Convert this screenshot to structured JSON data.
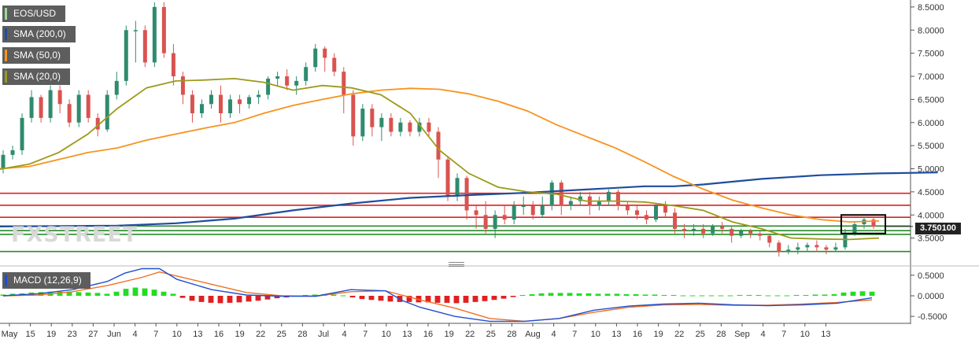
{
  "legend": {
    "pair": "EOS/USD",
    "sma200": "SMA (200,0)",
    "sma50": "SMA (50,0)",
    "sma20": "SMA (20,0)",
    "macd": "MACD (12,26,9)"
  },
  "watermark": "FXSTREET",
  "current_price": "3.750100",
  "colors": {
    "bull": "#2e8b6e",
    "bear": "#d9534f",
    "sma200": "#1f4e9c",
    "sma50": "#f7931e",
    "sma20": "#9c9a1a",
    "macd_line": "#1f4fd0",
    "signal_line": "#f07020",
    "hist_pos": "#22dd22",
    "hist_neg": "#e02020",
    "resistance": "#e02020",
    "support": "#2a8a2a"
  },
  "chart_data": [
    {
      "type": "candlestick",
      "title": "EOS/USD",
      "ylim": [
        3.0,
        8.6
      ],
      "y_ticks": [
        8.5,
        8.0,
        7.5,
        7.0,
        6.5,
        6.0,
        5.5,
        5.0,
        4.5,
        4.0,
        3.5
      ],
      "y_tick_labels": [
        "8.5000",
        "8.0000",
        "7.5000",
        "7.0000",
        "6.5000",
        "6.0000",
        "5.5000",
        "5.0000",
        "4.5000",
        "4.0000",
        "3.5000"
      ],
      "x_tick_labels": [
        "May",
        "15",
        "19",
        "23",
        "27",
        "Jun",
        "4",
        "7",
        "10",
        "13",
        "16",
        "19",
        "22",
        "25",
        "28",
        "Jul",
        "4",
        "7",
        "10",
        "13",
        "16",
        "19",
        "22",
        "25",
        "28",
        "Aug",
        "4",
        "7",
        "10",
        "13",
        "16",
        "19",
        "22",
        "25",
        "28",
        "Sep",
        "4",
        "7",
        "10",
        "13"
      ],
      "candles": [
        [
          5.0,
          5.3,
          5.4,
          4.9
        ],
        [
          5.3,
          5.4,
          5.5,
          5.2
        ],
        [
          5.4,
          6.1,
          6.2,
          5.3
        ],
        [
          6.1,
          6.55,
          6.7,
          6.0
        ],
        [
          6.55,
          6.1,
          6.6,
          6.0
        ],
        [
          6.1,
          6.7,
          6.8,
          6.0
        ],
        [
          6.7,
          6.4,
          6.8,
          6.2
        ],
        [
          6.4,
          6.0,
          6.5,
          5.9
        ],
        [
          6.0,
          6.6,
          6.7,
          5.9
        ],
        [
          6.6,
          6.1,
          6.7,
          6.0
        ],
        [
          6.1,
          5.85,
          6.2,
          5.7
        ],
        [
          5.85,
          6.6,
          6.7,
          5.8
        ],
        [
          6.6,
          6.9,
          7.1,
          6.5
        ],
        [
          6.9,
          8.0,
          8.1,
          6.8
        ],
        [
          8.0,
          8.0,
          8.2,
          7.3
        ],
        [
          8.0,
          7.3,
          8.1,
          7.2
        ],
        [
          7.3,
          8.5,
          8.6,
          7.2
        ],
        [
          8.5,
          7.5,
          8.6,
          7.4
        ],
        [
          7.5,
          7.0,
          7.7,
          6.8
        ],
        [
          7.0,
          6.6,
          7.1,
          6.4
        ],
        [
          6.6,
          6.2,
          6.7,
          6.0
        ],
        [
          6.2,
          6.4,
          6.5,
          6.1
        ],
        [
          6.4,
          6.6,
          6.7,
          6.3
        ],
        [
          6.6,
          6.2,
          6.8,
          6.0
        ],
        [
          6.2,
          6.5,
          6.6,
          6.1
        ],
        [
          6.5,
          6.4,
          6.6,
          6.2
        ],
        [
          6.4,
          6.55,
          6.6,
          6.3
        ],
        [
          6.55,
          6.6,
          6.7,
          6.4
        ],
        [
          6.6,
          6.95,
          7.0,
          6.5
        ],
        [
          6.95,
          7.0,
          7.1,
          6.8
        ],
        [
          7.0,
          6.8,
          7.15,
          6.7
        ],
        [
          6.8,
          6.9,
          7.0,
          6.6
        ],
        [
          6.9,
          7.2,
          7.3,
          6.8
        ],
        [
          7.2,
          7.6,
          7.7,
          7.1
        ],
        [
          7.6,
          7.4,
          7.65,
          7.1
        ],
        [
          7.4,
          7.1,
          7.5,
          7.0
        ],
        [
          7.1,
          6.6,
          7.2,
          6.2
        ],
        [
          6.6,
          5.7,
          6.7,
          5.5
        ],
        [
          5.7,
          6.3,
          6.4,
          5.6
        ],
        [
          6.3,
          5.9,
          6.4,
          5.7
        ],
        [
          5.9,
          6.1,
          6.2,
          5.6
        ],
        [
          6.1,
          5.8,
          6.2,
          5.7
        ],
        [
          5.8,
          6.0,
          6.1,
          5.7
        ],
        [
          6.0,
          5.8,
          6.05,
          5.7
        ],
        [
          5.8,
          6.0,
          6.1,
          5.7
        ],
        [
          6.0,
          5.8,
          6.1,
          5.7
        ],
        [
          5.8,
          5.2,
          5.9,
          4.8
        ],
        [
          5.2,
          4.4,
          5.25,
          4.3
        ],
        [
          4.4,
          4.8,
          4.9,
          4.3
        ],
        [
          4.8,
          4.1,
          4.85,
          3.9
        ],
        [
          4.1,
          4.0,
          4.2,
          3.7
        ],
        [
          4.0,
          3.7,
          4.3,
          3.6
        ],
        [
          3.7,
          4.0,
          4.1,
          3.5
        ],
        [
          4.0,
          3.9,
          4.2,
          3.8
        ],
        [
          3.9,
          4.2,
          4.3,
          3.8
        ],
        [
          4.2,
          4.2,
          4.4,
          4.0
        ],
        [
          4.2,
          4.0,
          4.3,
          3.9
        ],
        [
          4.0,
          4.2,
          4.4,
          3.95
        ],
        [
          4.2,
          4.7,
          4.75,
          4.1
        ],
        [
          4.7,
          4.2,
          4.75,
          4.0
        ],
        [
          4.2,
          4.3,
          4.4,
          4.1
        ],
        [
          4.3,
          4.4,
          4.5,
          4.2
        ],
        [
          4.4,
          4.2,
          4.5,
          4.0
        ],
        [
          4.2,
          4.3,
          4.4,
          4.1
        ],
        [
          4.3,
          4.5,
          4.55,
          4.2
        ],
        [
          4.5,
          4.2,
          4.55,
          4.1
        ],
        [
          4.2,
          4.1,
          4.3,
          4.0
        ],
        [
          4.1,
          4.0,
          4.2,
          3.9
        ],
        [
          4.0,
          3.9,
          4.1,
          3.8
        ],
        [
          3.9,
          4.2,
          4.25,
          3.85
        ],
        [
          4.2,
          4.05,
          4.3,
          3.95
        ],
        [
          4.05,
          3.7,
          4.15,
          3.6
        ],
        [
          3.7,
          3.65,
          3.8,
          3.5
        ],
        [
          3.65,
          3.7,
          3.8,
          3.55
        ],
        [
          3.7,
          3.6,
          3.8,
          3.5
        ],
        [
          3.6,
          3.75,
          3.8,
          3.55
        ],
        [
          3.75,
          3.7,
          3.85,
          3.6
        ],
        [
          3.7,
          3.55,
          3.75,
          3.4
        ],
        [
          3.55,
          3.65,
          3.7,
          3.5
        ],
        [
          3.65,
          3.6,
          3.7,
          3.5
        ],
        [
          3.6,
          3.55,
          3.65,
          3.45
        ],
        [
          3.55,
          3.4,
          3.6,
          3.3
        ],
        [
          3.4,
          3.2,
          3.45,
          3.1
        ],
        [
          3.2,
          3.25,
          3.35,
          3.15
        ],
        [
          3.25,
          3.3,
          3.4,
          3.15
        ],
        [
          3.3,
          3.35,
          3.4,
          3.2
        ],
        [
          3.35,
          3.3,
          3.45,
          3.2
        ],
        [
          3.3,
          3.25,
          3.35,
          3.15
        ],
        [
          3.25,
          3.3,
          3.4,
          3.2
        ],
        [
          3.3,
          3.6,
          3.7,
          3.25
        ],
        [
          3.6,
          3.8,
          3.85,
          3.55
        ],
        [
          3.8,
          3.9,
          3.95,
          3.7
        ],
        [
          3.9,
          3.75,
          3.95,
          3.7
        ]
      ],
      "sma200": [
        [
          0,
          3.75
        ],
        [
          10,
          3.76
        ],
        [
          20,
          3.77
        ],
        [
          30,
          3.82
        ],
        [
          40,
          3.92
        ],
        [
          50,
          4.1
        ],
        [
          60,
          4.25
        ],
        [
          70,
          4.37
        ],
        [
          80,
          4.43
        ],
        [
          90,
          4.48
        ],
        [
          100,
          4.55
        ],
        [
          110,
          4.62
        ],
        [
          115,
          4.62
        ],
        [
          120,
          4.66
        ],
        [
          130,
          4.78
        ],
        [
          140,
          4.86
        ],
        [
          150,
          4.9
        ],
        [
          160,
          4.92
        ]
      ],
      "sma50": [
        [
          0,
          5.0
        ],
        [
          5,
          5.05
        ],
        [
          10,
          5.2
        ],
        [
          15,
          5.35
        ],
        [
          20,
          5.45
        ],
        [
          25,
          5.62
        ],
        [
          30,
          5.75
        ],
        [
          35,
          5.88
        ],
        [
          40,
          6.0
        ],
        [
          45,
          6.2
        ],
        [
          50,
          6.37
        ],
        [
          55,
          6.5
        ],
        [
          60,
          6.62
        ],
        [
          65,
          6.7
        ],
        [
          70,
          6.74
        ],
        [
          75,
          6.72
        ],
        [
          80,
          6.62
        ],
        [
          85,
          6.46
        ],
        [
          90,
          6.25
        ],
        [
          95,
          5.95
        ],
        [
          100,
          5.7
        ],
        [
          105,
          5.45
        ],
        [
          110,
          5.15
        ],
        [
          115,
          4.83
        ],
        [
          120,
          4.56
        ],
        [
          125,
          4.32
        ],
        [
          130,
          4.15
        ],
        [
          135,
          4.0
        ],
        [
          140,
          3.9
        ],
        [
          145,
          3.85
        ],
        [
          150,
          3.87
        ]
      ],
      "sma20": [
        [
          0,
          4.99
        ],
        [
          5,
          5.1
        ],
        [
          10,
          5.35
        ],
        [
          15,
          5.75
        ],
        [
          20,
          6.3
        ],
        [
          25,
          6.75
        ],
        [
          30,
          6.9
        ],
        [
          35,
          6.92
        ],
        [
          40,
          6.95
        ],
        [
          45,
          6.87
        ],
        [
          50,
          6.7
        ],
        [
          55,
          6.8
        ],
        [
          60,
          6.75
        ],
        [
          65,
          6.6
        ],
        [
          70,
          6.2
        ],
        [
          75,
          5.4
        ],
        [
          80,
          4.9
        ],
        [
          85,
          4.6
        ],
        [
          90,
          4.5
        ],
        [
          95,
          4.45
        ],
        [
          100,
          4.3
        ],
        [
          105,
          4.3
        ],
        [
          110,
          4.28
        ],
        [
          115,
          4.2
        ],
        [
          120,
          4.1
        ],
        [
          125,
          3.85
        ],
        [
          130,
          3.7
        ],
        [
          135,
          3.5
        ],
        [
          140,
          3.48
        ],
        [
          145,
          3.47
        ],
        [
          150,
          3.5
        ]
      ],
      "resistance_levels": [
        4.47,
        4.21,
        3.95
      ],
      "support_levels": [
        3.76,
        3.66,
        3.58,
        3.21
      ]
    },
    {
      "type": "macd",
      "title": "MACD (12,26,9)",
      "ylim": [
        -0.65,
        0.65
      ],
      "y_ticks": [
        0.5,
        0.0,
        -0.5
      ],
      "y_tick_labels": [
        "0.5000",
        "0.0000",
        "-0.5000"
      ],
      "macd": [
        [
          0,
          0.0
        ],
        [
          10,
          0.05
        ],
        [
          20,
          0.15
        ],
        [
          30,
          0.35
        ],
        [
          35,
          0.55
        ],
        [
          40,
          0.66
        ],
        [
          45,
          0.66
        ],
        [
          50,
          0.4
        ],
        [
          60,
          0.15
        ],
        [
          70,
          0.02
        ],
        [
          80,
          -0.01
        ],
        [
          90,
          -0.01
        ],
        [
          100,
          0.15
        ],
        [
          110,
          0.12
        ],
        [
          115,
          -0.12
        ],
        [
          120,
          -0.28
        ],
        [
          130,
          -0.5
        ],
        [
          140,
          -0.62
        ],
        [
          150,
          -0.62
        ],
        [
          160,
          -0.55
        ],
        [
          170,
          -0.35
        ],
        [
          180,
          -0.25
        ],
        [
          190,
          -0.2
        ],
        [
          200,
          -0.18
        ],
        [
          210,
          -0.22
        ],
        [
          220,
          -0.24
        ],
        [
          230,
          -0.22
        ],
        [
          240,
          -0.18
        ],
        [
          250,
          -0.05
        ]
      ],
      "signal": [
        [
          0,
          0.0
        ],
        [
          10,
          0.02
        ],
        [
          20,
          0.1
        ],
        [
          30,
          0.25
        ],
        [
          40,
          0.45
        ],
        [
          45,
          0.58
        ],
        [
          50,
          0.48
        ],
        [
          60,
          0.28
        ],
        [
          70,
          0.08
        ],
        [
          80,
          0.0
        ],
        [
          90,
          -0.01
        ],
        [
          100,
          0.1
        ],
        [
          110,
          0.12
        ],
        [
          120,
          -0.1
        ],
        [
          130,
          -0.3
        ],
        [
          140,
          -0.55
        ],
        [
          150,
          -0.62
        ],
        [
          160,
          -0.55
        ],
        [
          170,
          -0.4
        ],
        [
          180,
          -0.28
        ],
        [
          190,
          -0.22
        ],
        [
          200,
          -0.21
        ],
        [
          210,
          -0.23
        ],
        [
          220,
          -0.23
        ],
        [
          230,
          -0.2
        ],
        [
          240,
          -0.16
        ],
        [
          250,
          -0.1
        ]
      ],
      "histogram": [
        0.03,
        0.05,
        0.06,
        0.08,
        0.09,
        0.1,
        0.1,
        0.1,
        0.09,
        0.08,
        0.07,
        0.05,
        0.1,
        0.17,
        0.2,
        0.18,
        0.15,
        0.1,
        0.05,
        -0.05,
        -0.12,
        -0.15,
        -0.17,
        -0.18,
        -0.17,
        -0.16,
        -0.14,
        -0.12,
        -0.09,
        -0.06,
        -0.04,
        -0.02,
        0.02,
        0.03,
        0.04,
        0.03,
        0.01,
        -0.04,
        -0.08,
        -0.1,
        -0.12,
        -0.14,
        -0.15,
        -0.15,
        -0.16,
        -0.16,
        -0.17,
        -0.17,
        -0.18,
        -0.17,
        -0.15,
        -0.13,
        -0.1,
        -0.07,
        -0.03,
        0.02,
        0.04,
        0.06,
        0.07,
        0.07,
        0.07,
        0.06,
        0.06,
        0.05,
        0.05,
        0.05,
        0.04,
        0.04,
        0.03,
        0.03,
        0.02,
        0.02,
        0.01,
        0.01,
        0.01,
        0.01,
        0.01,
        0.01,
        0.02,
        0.02,
        0.02,
        0.01,
        0.01,
        0.01,
        0.02,
        0.02,
        0.03,
        0.03,
        0.04,
        0.08,
        0.1,
        0.11,
        0.1
      ]
    }
  ]
}
